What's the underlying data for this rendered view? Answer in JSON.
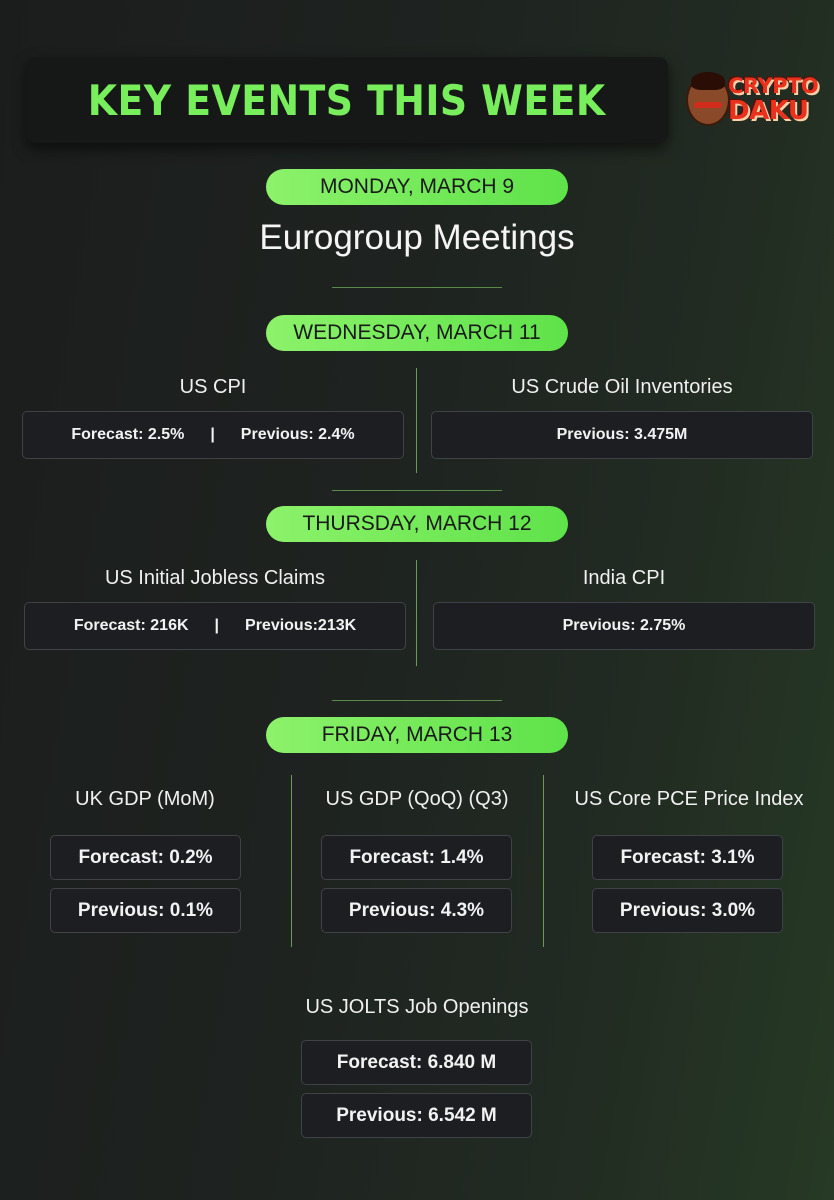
{
  "header": {
    "title": "KEY EVENTS THIS WEEK",
    "logo_line1": "CRYPTO",
    "logo_line2": "DAKU"
  },
  "monday": {
    "day": "MONDAY, MARCH 9",
    "event": "Eurogroup Meetings"
  },
  "wednesday": {
    "day": "WEDNESDAY, MARCH 11",
    "events": [
      {
        "name": "US CPI",
        "forecast": "Forecast: 2.5%",
        "separator": "|",
        "previous": "Previous: 2.4%"
      },
      {
        "name": "US Crude Oil Inventories",
        "previous": "Previous: 3.475M"
      }
    ]
  },
  "thursday": {
    "day": "THURSDAY, MARCH 12",
    "events": [
      {
        "name": "US Initial Jobless Claims",
        "forecast": "Forecast: 216K",
        "separator": "|",
        "previous": "Previous:213K"
      },
      {
        "name": "India CPI",
        "previous": "Previous: 2.75%"
      }
    ]
  },
  "friday": {
    "day": "FRIDAY, MARCH 13",
    "events": [
      {
        "name": "UK GDP (MoM)",
        "forecast": "Forecast: 0.2%",
        "previous": "Previous: 0.1%"
      },
      {
        "name": "US GDP (QoQ) (Q3)",
        "forecast": "Forecast: 1.4%",
        "previous": "Previous: 4.3%"
      },
      {
        "name": "US Core PCE Price Index",
        "forecast": "Forecast: 3.1%",
        "previous": "Previous: 3.0%"
      },
      {
        "name": "US JOLTS Job Openings",
        "forecast": "Forecast: 6.840 M",
        "previous": "Previous: 6.542 M"
      }
    ]
  },
  "colors": {
    "accent": "#78ee5c",
    "pill_gradient_start": "#8cf26a",
    "pill_gradient_end": "#5fe24a",
    "logo_red": "#e8321e",
    "background": "#1e2320"
  }
}
